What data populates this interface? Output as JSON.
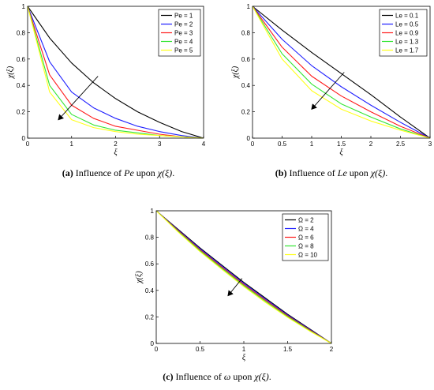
{
  "colors": {
    "black": "#000000",
    "blue": "#1f1fff",
    "red": "#ff1a1a",
    "green": "#33e633",
    "yellow": "#ffff1a"
  },
  "captions": [
    {
      "tag": "(a)",
      "pre": " Influence of ",
      "param": "Pe",
      "post": " upon ",
      "func": "χ(ξ)",
      "end": "."
    },
    {
      "tag": "(b)",
      "pre": " Influence of ",
      "param": "Le",
      "post": " upon ",
      "func": "χ(ξ)",
      "end": "."
    },
    {
      "tag": "(c)",
      "pre": " Influence of ",
      "param": "ω",
      "post": " upon ",
      "func": "χ(ξ)",
      "end": "."
    }
  ],
  "chart_data": [
    {
      "type": "line",
      "xlabel": "ξ",
      "ylabel": "χ(ξ)",
      "xlim": [
        0,
        4
      ],
      "ylim": [
        0,
        1
      ],
      "xticks": [
        "0",
        "1",
        "2",
        "3",
        "4"
      ],
      "yticks": [
        "0",
        "0.2",
        "0.4",
        "0.6",
        "0.8",
        "1"
      ],
      "legend_position": "top-right",
      "x": [
        0,
        0.5,
        1,
        1.5,
        2,
        2.5,
        3,
        3.5,
        4
      ],
      "series": [
        {
          "name": "Pe = 1",
          "color": "#000000",
          "values": [
            1,
            0.76,
            0.57,
            0.42,
            0.3,
            0.2,
            0.12,
            0.05,
            0
          ]
        },
        {
          "name": "Pe = 2",
          "color": "#1f1fff",
          "values": [
            1,
            0.58,
            0.35,
            0.23,
            0.15,
            0.09,
            0.05,
            0.02,
            0
          ]
        },
        {
          "name": "Pe = 3",
          "color": "#ff1a1a",
          "values": [
            1,
            0.48,
            0.25,
            0.15,
            0.09,
            0.06,
            0.03,
            0.01,
            0
          ]
        },
        {
          "name": "Pe = 4",
          "color": "#33e633",
          "values": [
            1,
            0.4,
            0.18,
            0.1,
            0.06,
            0.04,
            0.02,
            0.01,
            0
          ]
        },
        {
          "name": "Pe = 5",
          "color": "#ffff1a",
          "values": [
            1,
            0.35,
            0.14,
            0.08,
            0.05,
            0.03,
            0.02,
            0.01,
            0
          ]
        }
      ],
      "arrow": {
        "from": [
          1.6,
          0.47
        ],
        "to": [
          0.7,
          0.14
        ]
      }
    },
    {
      "type": "line",
      "xlabel": "ξ",
      "ylabel": "χ(ξ)",
      "xlim": [
        0,
        3
      ],
      "ylim": [
        0,
        1
      ],
      "xticks": [
        "0",
        "0.5",
        "1",
        "1.5",
        "2",
        "2.5",
        "3"
      ],
      "yticks": [
        "0",
        "0.2",
        "0.4",
        "0.6",
        "0.8",
        "1"
      ],
      "legend_position": "top-right",
      "x": [
        0,
        0.5,
        1,
        1.5,
        2,
        2.5,
        3
      ],
      "series": [
        {
          "name": "Le = 0.1",
          "color": "#000000",
          "values": [
            1,
            0.82,
            0.65,
            0.49,
            0.33,
            0.16,
            0
          ]
        },
        {
          "name": "Le = 0.5",
          "color": "#1f1fff",
          "values": [
            1,
            0.75,
            0.55,
            0.39,
            0.25,
            0.12,
            0
          ]
        },
        {
          "name": "Le = 0.9",
          "color": "#ff1a1a",
          "values": [
            1,
            0.69,
            0.47,
            0.32,
            0.2,
            0.09,
            0
          ]
        },
        {
          "name": "Le = 1.3",
          "color": "#33e633",
          "values": [
            1,
            0.64,
            0.41,
            0.26,
            0.16,
            0.07,
            0
          ]
        },
        {
          "name": "Le = 1.7",
          "color": "#ffff1a",
          "values": [
            1,
            0.6,
            0.36,
            0.22,
            0.13,
            0.06,
            0
          ]
        }
      ],
      "arrow": {
        "from": [
          1.55,
          0.5
        ],
        "to": [
          1.0,
          0.22
        ]
      }
    },
    {
      "type": "line",
      "xlabel": "ξ",
      "ylabel": "χ(ξ)",
      "xlim": [
        0,
        2
      ],
      "ylim": [
        0,
        1
      ],
      "xticks": [
        "0",
        "0.5",
        "1",
        "1.5",
        "2"
      ],
      "yticks": [
        "0",
        "0.2",
        "0.4",
        "0.6",
        "0.8",
        "1"
      ],
      "legend_position": "top-right",
      "x": [
        0,
        0.25,
        0.5,
        0.75,
        1,
        1.25,
        1.5,
        1.75,
        2
      ],
      "series": [
        {
          "name": "Ω =  2",
          "color": "#000000",
          "values": [
            1,
            0.86,
            0.72,
            0.59,
            0.46,
            0.34,
            0.22,
            0.11,
            0
          ]
        },
        {
          "name": "Ω =  4",
          "color": "#1f1fff",
          "values": [
            1,
            0.855,
            0.713,
            0.582,
            0.452,
            0.332,
            0.214,
            0.106,
            0
          ]
        },
        {
          "name": "Ω =  6",
          "color": "#ff1a1a",
          "values": [
            1,
            0.85,
            0.706,
            0.574,
            0.444,
            0.324,
            0.208,
            0.102,
            0
          ]
        },
        {
          "name": "Ω =  8",
          "color": "#33e633",
          "values": [
            1,
            0.845,
            0.699,
            0.566,
            0.436,
            0.316,
            0.202,
            0.098,
            0
          ]
        },
        {
          "name": "Ω = 10",
          "color": "#ffff1a",
          "values": [
            1,
            0.84,
            0.692,
            0.558,
            0.428,
            0.308,
            0.196,
            0.094,
            0
          ]
        }
      ],
      "arrow": {
        "from": [
          0.98,
          0.49
        ],
        "to": [
          0.82,
          0.36
        ]
      }
    }
  ]
}
